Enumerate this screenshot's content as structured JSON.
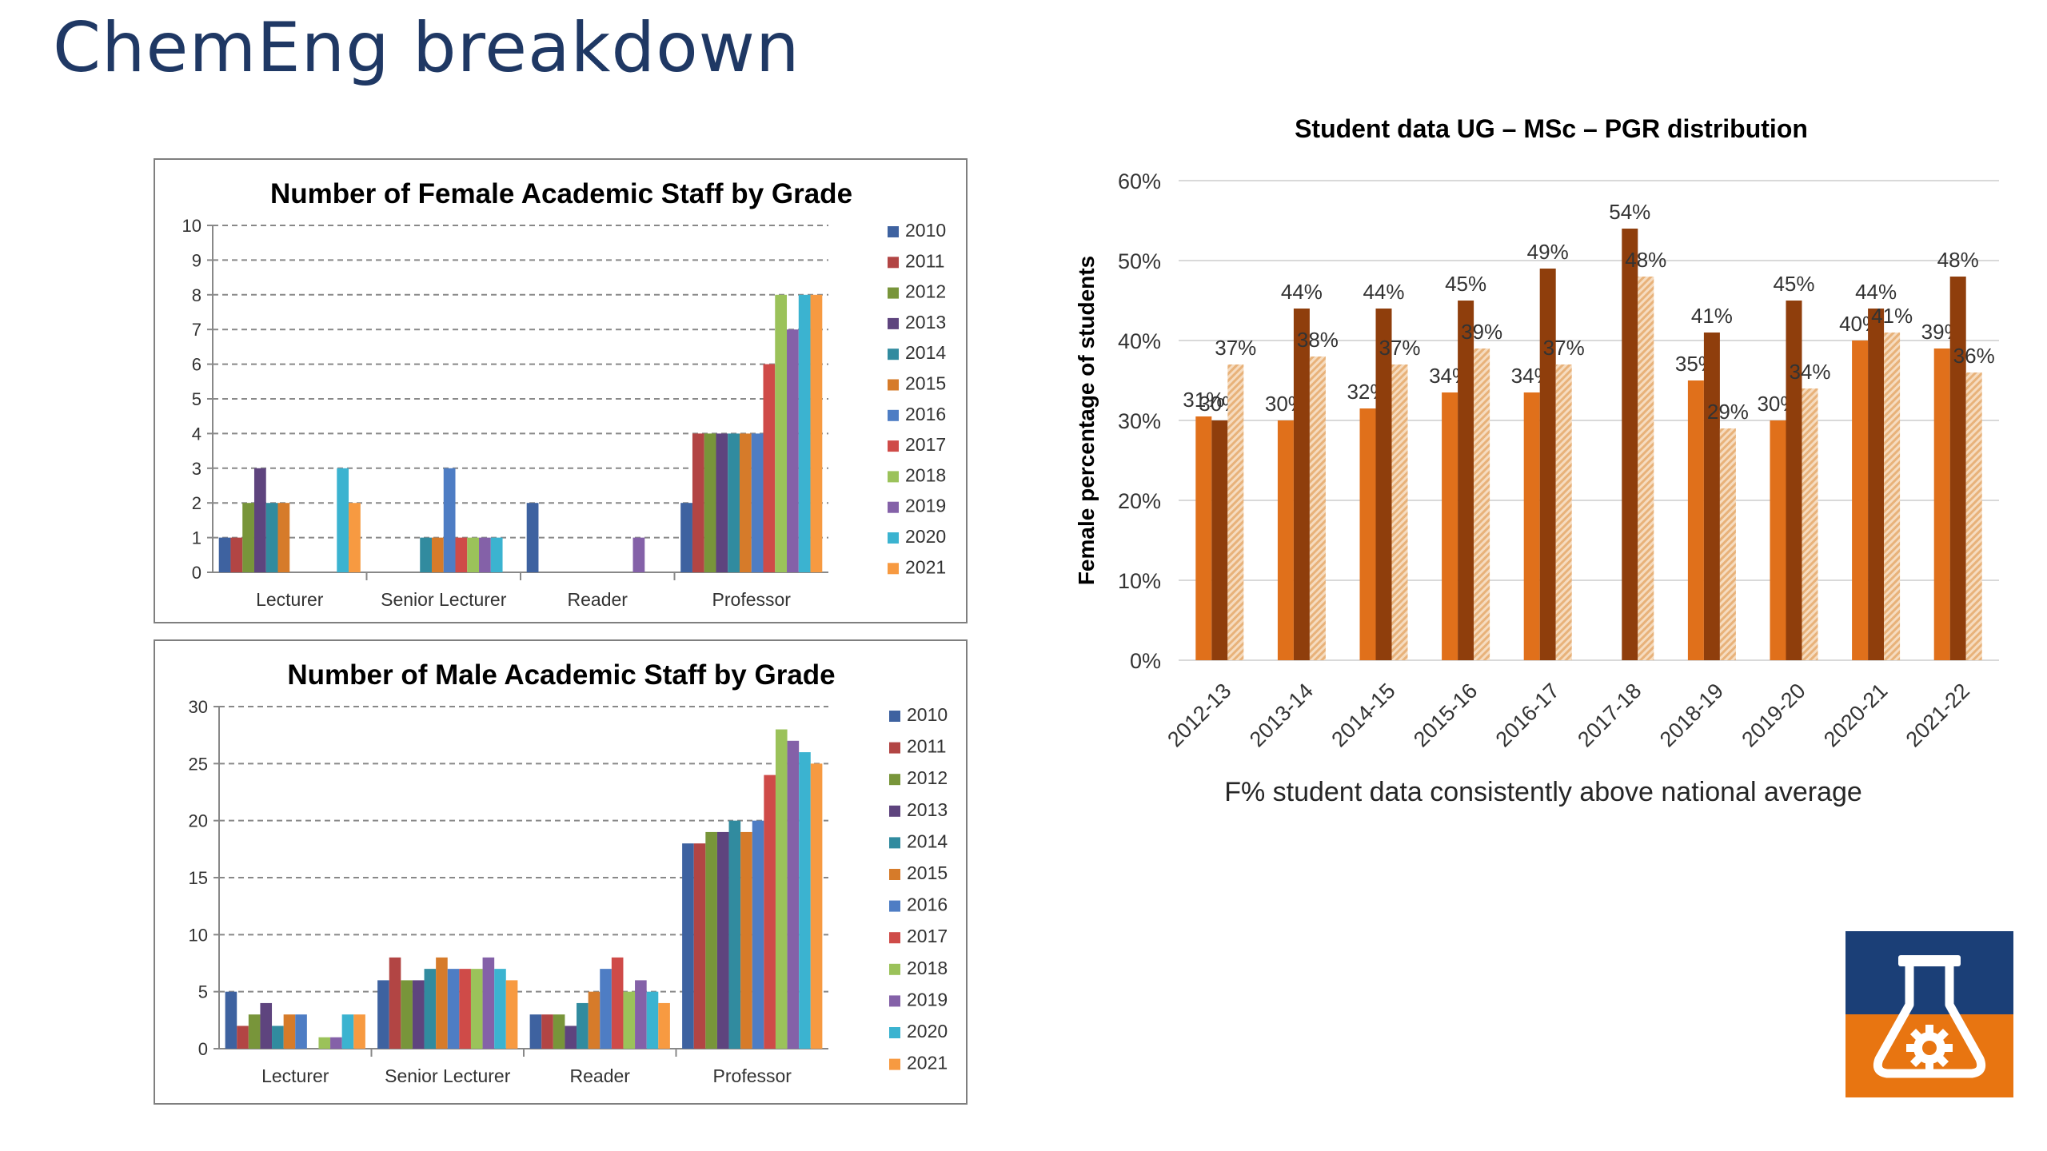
{
  "slide": {
    "title": "ChemEng breakdown"
  },
  "footnote": "F% student data consistently above national average",
  "logo": {
    "icon": "flask-gear-icon",
    "top_color": "#1b3f77",
    "bottom_color": "#e87511"
  },
  "colors": {
    "2010": "#3e62a0",
    "2011": "#b24544",
    "2012": "#78953a",
    "2013": "#5e447e",
    "2014": "#318b9f",
    "2015": "#d67b2a",
    "2016": "#4e7dc4",
    "2017": "#cf4b48",
    "2018": "#9bc25a",
    "2019": "#8461a8",
    "2020": "#3bb3d0",
    "2021": "#f79a41",
    "ug": "#e0701b",
    "msc": "#8f3e0c",
    "pgr": "#e8b27a"
  },
  "chart_data": [
    {
      "id": "female",
      "type": "bar",
      "title": "Number of Female Academic Staff by Grade",
      "categories": [
        "Lecturer",
        "Senior Lecturer",
        "Reader",
        "Professor"
      ],
      "ylim": [
        0,
        10
      ],
      "yticks": [
        0,
        1,
        2,
        3,
        4,
        5,
        6,
        7,
        8,
        9,
        10
      ],
      "grid": true,
      "legend": "right",
      "series": [
        {
          "name": "2010",
          "values": [
            1,
            0,
            2,
            2
          ]
        },
        {
          "name": "2011",
          "values": [
            1,
            0,
            0,
            4
          ]
        },
        {
          "name": "2012",
          "values": [
            2,
            0,
            0,
            4
          ]
        },
        {
          "name": "2013",
          "values": [
            3,
            0,
            0,
            4
          ]
        },
        {
          "name": "2014",
          "values": [
            2,
            1,
            0,
            4
          ]
        },
        {
          "name": "2015",
          "values": [
            2,
            1,
            0,
            4
          ]
        },
        {
          "name": "2016",
          "values": [
            0,
            3,
            0,
            4
          ]
        },
        {
          "name": "2017",
          "values": [
            0,
            1,
            0,
            6
          ]
        },
        {
          "name": "2018",
          "values": [
            0,
            1,
            0,
            8
          ]
        },
        {
          "name": "2019",
          "values": [
            0,
            1,
            1,
            7
          ]
        },
        {
          "name": "2020",
          "values": [
            3,
            1,
            0,
            8
          ]
        },
        {
          "name": "2021",
          "values": [
            2,
            0,
            0,
            8
          ]
        }
      ]
    },
    {
      "id": "male",
      "type": "bar",
      "title": "Number of Male Academic Staff by Grade",
      "categories": [
        "Lecturer",
        "Senior Lecturer",
        "Reader",
        "Professor"
      ],
      "ylim": [
        0,
        30
      ],
      "yticks": [
        0,
        5,
        10,
        15,
        20,
        25,
        30
      ],
      "grid": true,
      "legend": "right",
      "series": [
        {
          "name": "2010",
          "values": [
            5,
            6,
            3,
            18
          ]
        },
        {
          "name": "2011",
          "values": [
            2,
            8,
            3,
            18
          ]
        },
        {
          "name": "2012",
          "values": [
            3,
            6,
            3,
            19
          ]
        },
        {
          "name": "2013",
          "values": [
            4,
            6,
            2,
            19
          ]
        },
        {
          "name": "2014",
          "values": [
            2,
            7,
            4,
            20
          ]
        },
        {
          "name": "2015",
          "values": [
            3,
            8,
            5,
            19
          ]
        },
        {
          "name": "2016",
          "values": [
            3,
            7,
            7,
            20
          ]
        },
        {
          "name": "2017",
          "values": [
            0,
            7,
            8,
            24
          ]
        },
        {
          "name": "2018",
          "values": [
            1,
            7,
            5,
            28
          ]
        },
        {
          "name": "2019",
          "values": [
            1,
            8,
            6,
            27
          ]
        },
        {
          "name": "2020",
          "values": [
            3,
            7,
            5,
            26
          ]
        },
        {
          "name": "2021",
          "values": [
            3,
            6,
            4,
            25
          ]
        }
      ]
    },
    {
      "id": "students",
      "type": "bar",
      "title": "Student data UG – MSc – PGR distribution",
      "ylabel": "Female percentage of students",
      "categories": [
        "2012-13",
        "2013-14",
        "2014-15",
        "2015-16",
        "2016-17",
        "2017-18",
        "2018-19",
        "2019-20",
        "2020-21",
        "2021-22"
      ],
      "ylim": [
        0,
        60
      ],
      "yticks": [
        0,
        10,
        20,
        30,
        40,
        50,
        60
      ],
      "ytick_labels": [
        "0%",
        "10%",
        "20%",
        "30%",
        "40%",
        "50%",
        "60%"
      ],
      "grid": true,
      "series": [
        {
          "name": "UG",
          "values": [
            30.5,
            30,
            31.5,
            33.5,
            33.5,
            null,
            35,
            30,
            40,
            39
          ],
          "labels": [
            "31%",
            "30%",
            "32%",
            "34%",
            "34%",
            "",
            "35%",
            "30%",
            "40%",
            "39%"
          ]
        },
        {
          "name": "MSc",
          "values": [
            30,
            44,
            44,
            45,
            49,
            54,
            41,
            45,
            44,
            48
          ],
          "labels": [
            "30%",
            "44%",
            "44%",
            "45%",
            "49%",
            "54%",
            "41%",
            "45%",
            "44%",
            "48%"
          ]
        },
        {
          "name": "PGR",
          "values": [
            37,
            38,
            37,
            39,
            37,
            48,
            29,
            34,
            41,
            36
          ],
          "labels": [
            "37%",
            "38%",
            "37%",
            "39%",
            "37%",
            "48%",
            "29%",
            "34%",
            "41%",
            "36%"
          ]
        }
      ]
    }
  ]
}
